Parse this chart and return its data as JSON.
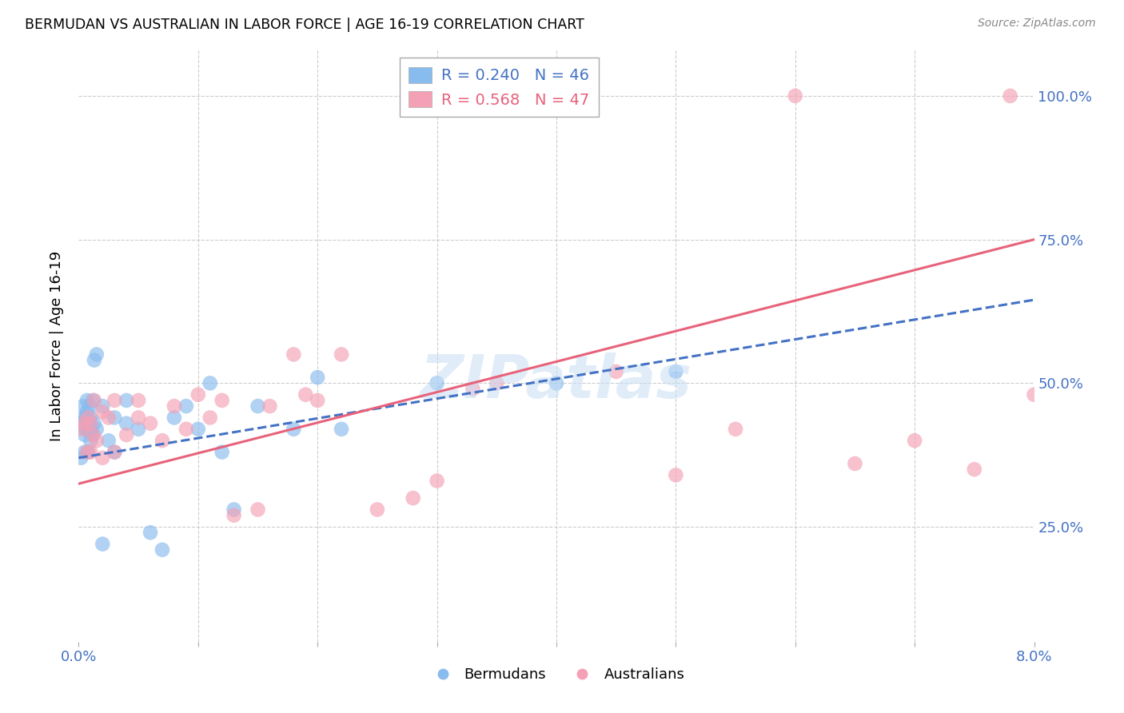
{
  "title": "BERMUDAN VS AUSTRALIAN IN LABOR FORCE | AGE 16-19 CORRELATION CHART",
  "source": "Source: ZipAtlas.com",
  "ylabel": "In Labor Force | Age 16-19",
  "x_min": 0.0,
  "x_max": 0.08,
  "y_min": 0.05,
  "y_max": 1.08,
  "bermudan_r": 0.24,
  "bermudan_n": 46,
  "australian_r": 0.568,
  "australian_n": 47,
  "bermudan_color": "#88bbee",
  "australian_color": "#f4a0b5",
  "bermudan_line_color": "#4472c4",
  "australian_line_color": "#e8627a",
  "watermark": "ZIPatlas",
  "legend_bermudan": "Bermudans",
  "legend_australian": "Australians",
  "bermudan_x": [
    0.0002,
    0.0003,
    0.0004,
    0.0004,
    0.0005,
    0.0005,
    0.0006,
    0.0006,
    0.0007,
    0.0007,
    0.0008,
    0.0008,
    0.0009,
    0.0009,
    0.001,
    0.001,
    0.001,
    0.0012,
    0.0012,
    0.0013,
    0.0013,
    0.0015,
    0.0015,
    0.002,
    0.002,
    0.0025,
    0.003,
    0.003,
    0.004,
    0.004,
    0.005,
    0.006,
    0.007,
    0.008,
    0.009,
    0.01,
    0.011,
    0.012,
    0.013,
    0.015,
    0.018,
    0.02,
    0.022,
    0.03,
    0.04,
    0.05
  ],
  "bermudan_y": [
    0.37,
    0.43,
    0.44,
    0.46,
    0.38,
    0.41,
    0.42,
    0.44,
    0.45,
    0.47,
    0.38,
    0.42,
    0.43,
    0.46,
    0.4,
    0.42,
    0.44,
    0.41,
    0.47,
    0.43,
    0.54,
    0.42,
    0.55,
    0.22,
    0.46,
    0.4,
    0.38,
    0.44,
    0.43,
    0.47,
    0.42,
    0.24,
    0.21,
    0.44,
    0.46,
    0.42,
    0.5,
    0.38,
    0.28,
    0.46,
    0.42,
    0.51,
    0.42,
    0.5,
    0.5,
    0.52
  ],
  "australian_x": [
    0.0003,
    0.0005,
    0.0007,
    0.0008,
    0.001,
    0.001,
    0.0012,
    0.0013,
    0.0015,
    0.002,
    0.002,
    0.0025,
    0.003,
    0.003,
    0.004,
    0.005,
    0.005,
    0.006,
    0.007,
    0.008,
    0.009,
    0.01,
    0.011,
    0.012,
    0.013,
    0.015,
    0.016,
    0.018,
    0.019,
    0.02,
    0.022,
    0.025,
    0.028,
    0.03,
    0.033,
    0.035,
    0.038,
    0.04,
    0.045,
    0.05,
    0.055,
    0.06,
    0.065,
    0.07,
    0.075,
    0.078,
    0.08
  ],
  "australian_y": [
    0.42,
    0.43,
    0.38,
    0.44,
    0.38,
    0.43,
    0.41,
    0.47,
    0.4,
    0.37,
    0.45,
    0.44,
    0.38,
    0.47,
    0.41,
    0.44,
    0.47,
    0.43,
    0.4,
    0.46,
    0.42,
    0.48,
    0.44,
    0.47,
    0.27,
    0.28,
    0.46,
    0.55,
    0.48,
    0.47,
    0.55,
    0.28,
    0.3,
    0.33,
    0.49,
    0.5,
    1.0,
    1.0,
    0.52,
    0.34,
    0.42,
    1.0,
    0.36,
    0.4,
    0.35,
    1.0,
    0.48
  ],
  "berm_line_x0": 0.0,
  "berm_line_y0": 0.37,
  "berm_line_x1": 0.08,
  "berm_line_y1": 0.645,
  "aust_line_x0": 0.0,
  "aust_line_y0": 0.325,
  "aust_line_x1": 0.08,
  "aust_line_y1": 0.75
}
